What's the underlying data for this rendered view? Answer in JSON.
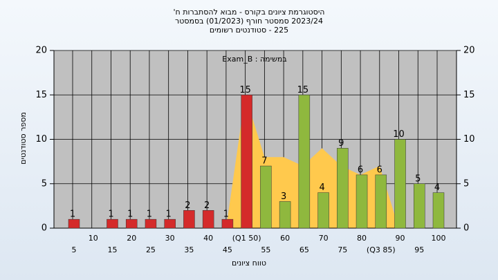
{
  "chart_data": {
    "type": "bar",
    "title": [
      "היסטוגרמת ציונים בקורס - מבוא להסתברות ח'",
      "2023/24 סמסטר חורף (01/2023) בסמסטר",
      "225 - סטודנטים רשומים"
    ],
    "annotation": "Exam_B : במשימה",
    "x_label": "טווח ציונים",
    "y_label": "מספר סטודנטים",
    "categories": [
      "5",
      "10",
      "15",
      "20",
      "25",
      "30",
      "35",
      "40",
      "45",
      "(Q1 50)",
      "55",
      "60",
      "65",
      "70",
      "75",
      "80",
      "(Q3 85)",
      "90",
      "95",
      "100"
    ],
    "values": [
      1,
      0,
      1,
      1,
      1,
      1,
      2,
      2,
      1,
      15,
      7,
      3,
      15,
      4,
      9,
      6,
      6,
      10,
      5,
      4
    ],
    "colors": [
      "#d42a2a",
      "#d42a2a",
      "#d42a2a",
      "#d42a2a",
      "#d42a2a",
      "#d42a2a",
      "#d42a2a",
      "#d42a2a",
      "#d42a2a",
      "#d42a2a",
      "#8fb83e",
      "#8fb83e",
      "#8fb83e",
      "#8fb83e",
      "#8fb83e",
      "#8fb83e",
      "#8fb83e",
      "#8fb83e",
      "#8fb83e",
      "#8fb83e"
    ],
    "area_values": [
      null,
      null,
      null,
      null,
      null,
      null,
      null,
      null,
      0,
      15,
      8,
      8,
      7,
      9,
      7,
      6,
      7,
      0,
      null,
      null
    ],
    "area_color": "#ffc94d",
    "ylim": [
      0,
      20
    ],
    "yticks": [
      0,
      5,
      10,
      15,
      20
    ],
    "y2lim": [
      0,
      20
    ],
    "y2ticks": [
      0,
      5,
      10,
      15,
      20
    ],
    "grid": true
  }
}
